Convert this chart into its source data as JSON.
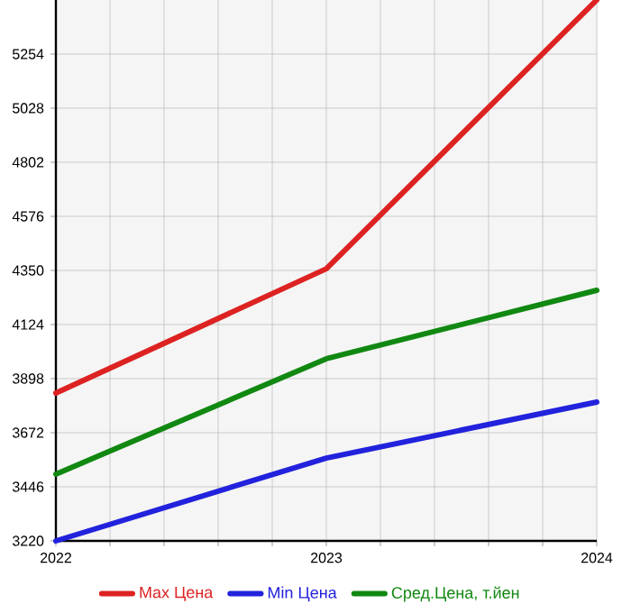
{
  "chart_data": {
    "type": "line",
    "x": [
      2022,
      2023,
      2024
    ],
    "series": [
      {
        "name": "Max Цена",
        "color": "#dd2222",
        "values": [
          3838,
          4357,
          5480
        ]
      },
      {
        "name": "Min Цена",
        "color": "#2222dd",
        "values": [
          3220,
          3566,
          3800
        ]
      },
      {
        "name": "Сред.Цена, т.йен",
        "color": "#118811",
        "values": [
          3499,
          3981,
          4267
        ]
      }
    ],
    "xlim": [
      2022,
      2024
    ],
    "xticks": [
      2022,
      {
        "value": 2022.2,
        "label": null
      },
      {
        "value": 2022.4,
        "label": null
      },
      {
        "value": 2022.6,
        "label": null
      },
      {
        "value": 2022.8,
        "label": null
      },
      2023,
      {
        "value": 2023.2,
        "label": null
      },
      {
        "value": 2023.4,
        "label": null
      },
      {
        "value": 2023.6,
        "label": null
      },
      {
        "value": 2023.8,
        "label": null
      },
      2024
    ],
    "ylim": [
      3220,
      5480
    ],
    "yticks": [
      3220,
      3446,
      3672,
      3898,
      4124,
      4350,
      4576,
      4802,
      5028,
      5254
    ],
    "grid": true,
    "legend": "bottom",
    "marker": "none",
    "line_style": "solid"
  }
}
